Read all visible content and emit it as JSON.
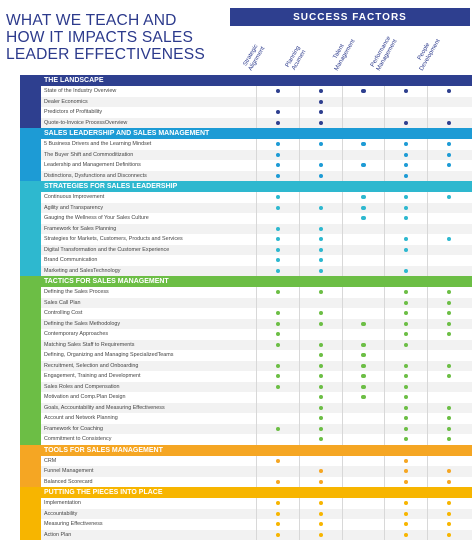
{
  "title": [
    "WHAT WE TEACH AND",
    "HOW IT IMPACTS SALES",
    "LEADER  EFFECTIVENESS"
  ],
  "success_factors": "SUCCESS  FACTORS",
  "columns": [
    [
      "Strategic",
      "Alignment"
    ],
    [
      "Planning",
      "Acumen"
    ],
    [
      "Talent",
      "Management"
    ],
    [
      "Performance",
      "Management"
    ],
    [
      "People",
      "Development"
    ]
  ],
  "sections": [
    {
      "title": "THE LANDSCAPE",
      "color": "#2e3f8f",
      "rows": [
        {
          "label": "State of the Industry Overview",
          "dots": [
            1,
            1,
            1,
            1,
            1
          ]
        },
        {
          "label": "Dealer Economics",
          "dots": [
            0,
            1,
            0,
            0,
            0
          ]
        },
        {
          "label": "Predictors of Profitability",
          "dots": [
            1,
            1,
            0,
            0,
            0
          ]
        },
        {
          "label": "Quote-to-Invoice  ProcessOverview",
          "dots": [
            1,
            1,
            0,
            1,
            1
          ]
        }
      ]
    },
    {
      "title": "SALES LEADERSHIP AND SALES MANAGEMENT",
      "color": "#1d9bd5",
      "rows": [
        {
          "label": "5 Business Drivers and the Learning Mindset",
          "dots": [
            1,
            1,
            1,
            1,
            1
          ]
        },
        {
          "label": "The Buyer Shift and Commoditization",
          "dots": [
            1,
            0,
            0,
            1,
            1
          ]
        },
        {
          "label": "Leadership and Management Definitions",
          "dots": [
            1,
            1,
            1,
            1,
            1
          ]
        },
        {
          "label": "Distinctions, Dysfunctions and Disconnects",
          "dots": [
            1,
            1,
            0,
            1,
            0
          ]
        }
      ]
    },
    {
      "title": "STRATEGIES FOR SALES LEADERSHIP",
      "color": "#2eb8cf",
      "rows": [
        {
          "label": "Continuous Improvement",
          "dots": [
            1,
            0,
            1,
            1,
            1
          ]
        },
        {
          "label": "Agility  and  Transparency",
          "dots": [
            1,
            1,
            1,
            1,
            0
          ]
        },
        {
          "label": "Gauging the Wellness of Your Sales Culture",
          "dots": [
            0,
            0,
            1,
            1,
            0
          ]
        },
        {
          "label": "Framework for  Sales  Planning",
          "dots": [
            1,
            1,
            0,
            0,
            0
          ]
        },
        {
          "label": "Strategies for  Markets,  Customers, Products and Services",
          "dots": [
            1,
            1,
            0,
            1,
            1
          ]
        },
        {
          "label": "Digital  Transformation  and the Customer Experience",
          "dots": [
            1,
            1,
            0,
            1,
            0
          ]
        },
        {
          "label": "Brand Communication",
          "dots": [
            1,
            1,
            0,
            0,
            0
          ]
        },
        {
          "label": "Marketing  and  SalesTechnology",
          "dots": [
            1,
            1,
            0,
            1,
            0
          ]
        }
      ]
    },
    {
      "title": "TACTICS FOR SALES MANAGEMENT",
      "color": "#6cbe45",
      "rows": [
        {
          "label": "Defining the Sales  Process",
          "dots": [
            1,
            1,
            0,
            1,
            1
          ]
        },
        {
          "label": "Sales Call Plan",
          "dots": [
            0,
            0,
            0,
            1,
            1
          ]
        },
        {
          "label": "Controlling  Cost",
          "dots": [
            1,
            1,
            0,
            1,
            1
          ]
        },
        {
          "label": "Defining the Sales Methodology",
          "dots": [
            1,
            1,
            1,
            1,
            1
          ]
        },
        {
          "label": "Contemporary  Approaches",
          "dots": [
            1,
            0,
            0,
            1,
            1
          ]
        },
        {
          "label": "Matching Sales Staff to Requirements",
          "dots": [
            1,
            1,
            1,
            1,
            0
          ]
        },
        {
          "label": "Defining, Organizing and Managing SpecializedTeams",
          "dots": [
            0,
            1,
            1,
            0,
            0
          ]
        },
        {
          "label": "Recruitment, Selection and Onboarding",
          "dots": [
            1,
            1,
            1,
            1,
            1
          ]
        },
        {
          "label": "Engagement, Training and Development",
          "dots": [
            1,
            1,
            1,
            1,
            1
          ]
        },
        {
          "label": "Sales Roles and Compensation",
          "dots": [
            1,
            1,
            1,
            1,
            0
          ]
        },
        {
          "label": "Motivation and Comp.Plan  Design",
          "dots": [
            0,
            1,
            1,
            1,
            0
          ]
        },
        {
          "label": "Goals, Accountability  and  Measuring Effectiveness",
          "dots": [
            0,
            1,
            0,
            1,
            1
          ]
        },
        {
          "label": "Account and Network  Planning",
          "dots": [
            0,
            1,
            0,
            1,
            1
          ]
        },
        {
          "label": "Framework for Coaching",
          "dots": [
            1,
            1,
            0,
            1,
            1
          ]
        },
        {
          "label": "Commitment  to Consistency",
          "dots": [
            0,
            1,
            0,
            1,
            1
          ]
        }
      ]
    },
    {
      "title": "TOOLS FOR SALES MANAGEMENT",
      "color": "#f5a623",
      "rows": [
        {
          "label": "CRM",
          "dots": [
            1,
            0,
            0,
            1,
            0
          ]
        },
        {
          "label": "Funnel Management",
          "dots": [
            0,
            1,
            0,
            1,
            1
          ]
        },
        {
          "label": "Balanced Scorecard",
          "dots": [
            1,
            1,
            0,
            1,
            1
          ]
        }
      ]
    },
    {
      "title": "PUTTING THE PIECES INTO PLACE",
      "color": "#f7b500",
      "rows": [
        {
          "label": "Implementation",
          "dots": [
            1,
            1,
            0,
            1,
            1
          ]
        },
        {
          "label": "Accountability",
          "dots": [
            1,
            1,
            0,
            1,
            1
          ]
        },
        {
          "label": "Measuring Effectiveness",
          "dots": [
            1,
            1,
            0,
            1,
            1
          ]
        },
        {
          "label": "Action Plan",
          "dots": [
            1,
            1,
            0,
            1,
            1
          ]
        }
      ]
    }
  ]
}
